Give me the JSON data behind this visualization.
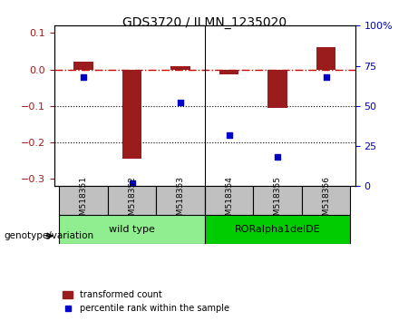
{
  "title": "GDS3720 / ILMN_1235020",
  "categories": [
    "GSM518351",
    "GSM518352",
    "GSM518353",
    "GSM518354",
    "GSM518355",
    "GSM518356"
  ],
  "red_bars": [
    0.022,
    -0.245,
    0.008,
    -0.013,
    -0.105,
    0.062
  ],
  "blue_dots": [
    -0.055,
    -0.295,
    -0.085,
    -0.155,
    -0.255,
    -0.06
  ],
  "blue_dots_pct": [
    68,
    2,
    52,
    32,
    18,
    68
  ],
  "ylim_left": [
    -0.32,
    0.12
  ],
  "ylim_right": [
    0,
    100
  ],
  "yticks_left": [
    -0.3,
    -0.2,
    -0.1,
    0.0,
    0.1
  ],
  "yticks_right": [
    0,
    25,
    50,
    75,
    100
  ],
  "bar_color": "#9B1C1C",
  "dot_color": "#0000CC",
  "hline_color": "#CC0000",
  "group1_label": "wild type",
  "group2_label": "RORalpha1delDE",
  "group1_indices": [
    0,
    1,
    2
  ],
  "group2_indices": [
    3,
    4,
    5
  ],
  "group1_color": "#90EE90",
  "group2_color": "#00CC00",
  "legend_label_red": "transformed count",
  "legend_label_blue": "percentile rank within the sample",
  "genotype_label": "genotype/variation",
  "background_color": "#FFFFFF",
  "plot_bg_color": "#FFFFFF",
  "grid_dotted_color": "#000000",
  "tick_header_bg": "#C0C0C0"
}
